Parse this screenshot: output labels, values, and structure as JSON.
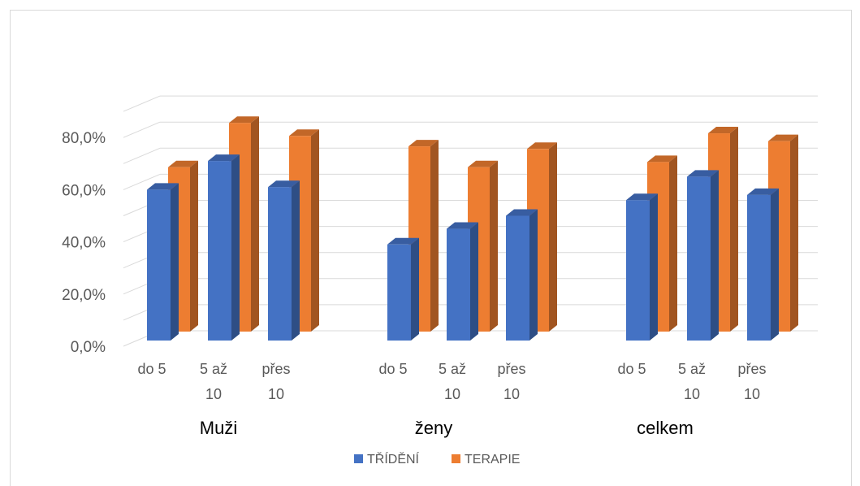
{
  "chart_data": {
    "type": "bar",
    "three_d": true,
    "categories": [
      "do 5",
      "5 až 10",
      "přes 10",
      "do 5",
      "5 až 10",
      "přes 10",
      "do 5",
      "5 až 10",
      "přes 10"
    ],
    "category_lines": [
      [
        "do 5"
      ],
      [
        "5 až",
        "10"
      ],
      [
        "přes",
        "10"
      ],
      [
        "do 5"
      ],
      [
        "5 až",
        "10"
      ],
      [
        "přes",
        "10"
      ],
      [
        "do 5"
      ],
      [
        "5 až",
        "10"
      ],
      [
        "přes",
        "10"
      ]
    ],
    "groups": [
      "Muži",
      "ženy",
      "celkem"
    ],
    "series": [
      {
        "name": "TŘÍDĚNÍ",
        "color": "#4472c4",
        "values": [
          60.0,
          71.0,
          61.0,
          39.0,
          45.0,
          50.0,
          56.0,
          65.0,
          58.0
        ]
      },
      {
        "name": "TERAPIE",
        "color": "#ed7d31",
        "values": [
          63.0,
          80.0,
          75.0,
          71.0,
          63.0,
          70.0,
          65.0,
          76.0,
          73.0
        ]
      }
    ],
    "yticks": [
      "0,0%",
      "20,0%",
      "40,0%",
      "60,0%",
      "80,0%"
    ],
    "ylim": [
      0,
      90
    ],
    "grid": true,
    "legend": "bottom"
  }
}
